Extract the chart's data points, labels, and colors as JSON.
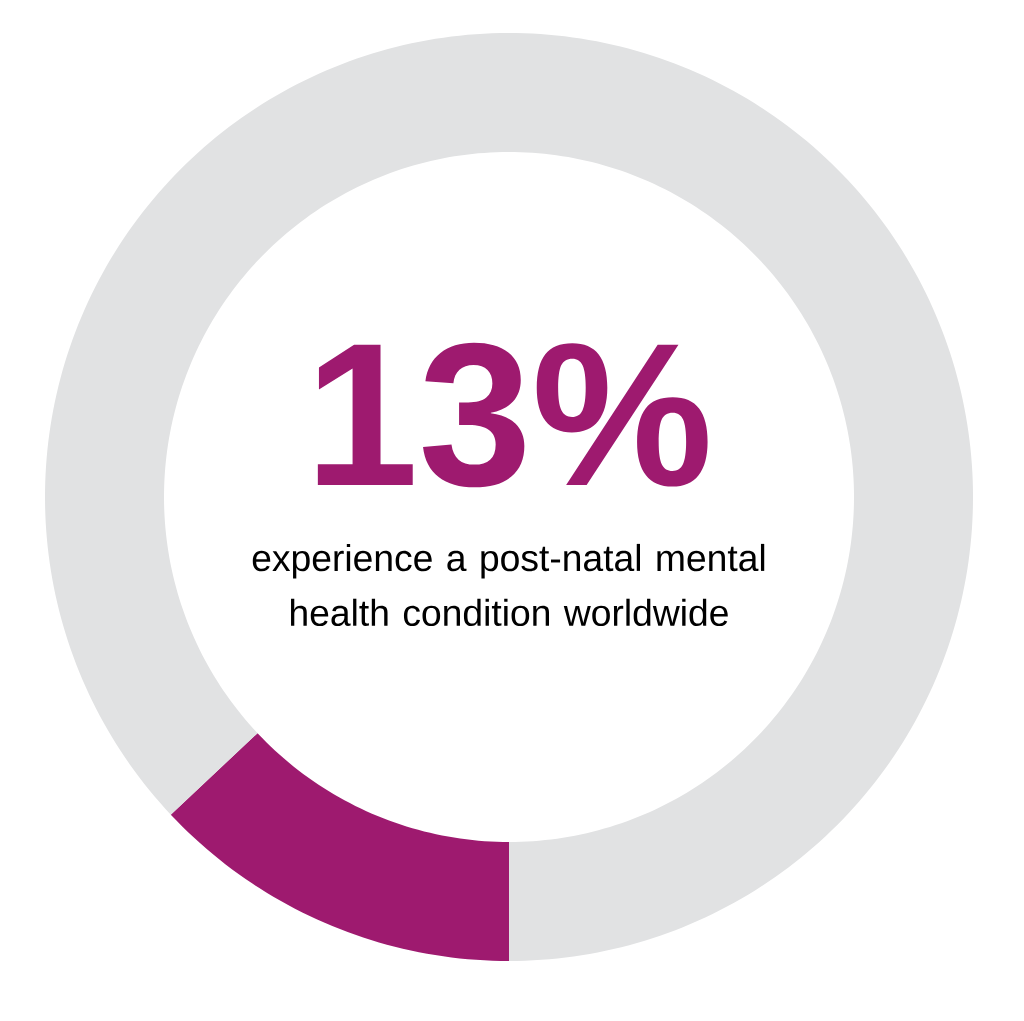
{
  "chart_data": {
    "type": "donut",
    "categories": [
      null,
      null
    ],
    "values": [
      13,
      87
    ],
    "colors": [
      "#9e1a6f",
      "#e1e2e3"
    ],
    "title": "13%",
    "annotations": [
      "experience a post-natal mental health condition worldwide"
    ]
  }
}
